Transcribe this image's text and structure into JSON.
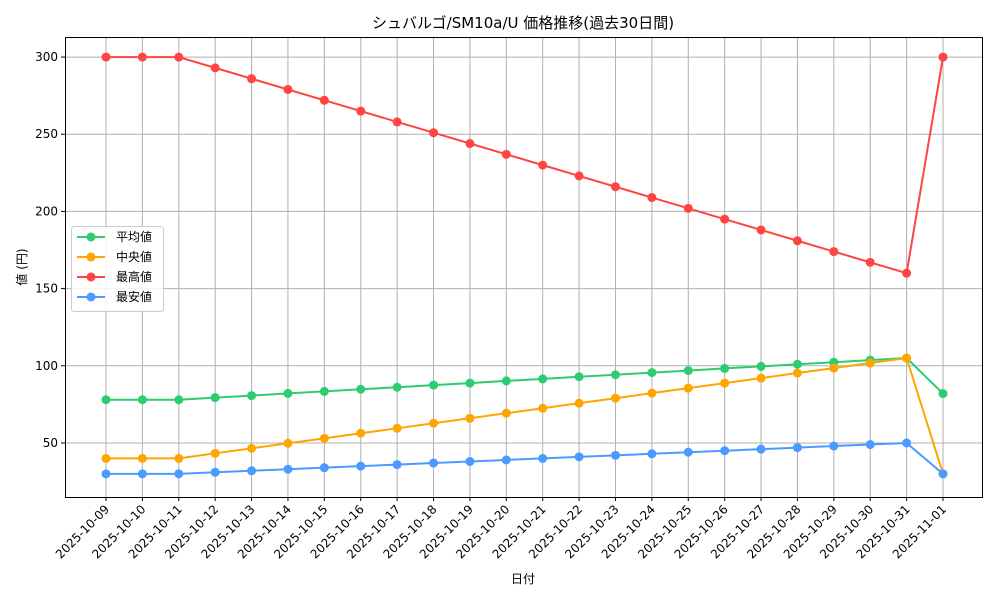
{
  "chart_data": {
    "type": "line",
    "title": "シュバルゴ/SM10a/U 価格推移(過去30日間)",
    "xlabel": "日付",
    "ylabel": "値 (円)",
    "ylim": [
      15,
      313
    ],
    "yticks": [
      50,
      100,
      150,
      200,
      250,
      300
    ],
    "grid": true,
    "legend_position": "center-left",
    "x": [
      "2025-10-09",
      "2025-10-10",
      "2025-10-11",
      "2025-10-12",
      "2025-10-13",
      "2025-10-14",
      "2025-10-15",
      "2025-10-16",
      "2025-10-17",
      "2025-10-18",
      "2025-10-19",
      "2025-10-20",
      "2025-10-21",
      "2025-10-22",
      "2025-10-23",
      "2025-10-24",
      "2025-10-25",
      "2025-10-26",
      "2025-10-27",
      "2025-10-28",
      "2025-10-29",
      "2025-10-30",
      "2025-10-31",
      "2025-11-01"
    ],
    "series": [
      {
        "name": "平均値",
        "color": "#2ecc71",
        "values": [
          78,
          78,
          78,
          79.4,
          80.7,
          82.1,
          83.4,
          84.8,
          86.1,
          87.5,
          88.8,
          90.2,
          91.5,
          92.9,
          94.2,
          95.6,
          96.9,
          98.3,
          99.6,
          101,
          102.3,
          103.7,
          105,
          82
        ]
      },
      {
        "name": "中央値",
        "color": "#ffa500",
        "values": [
          40,
          40,
          40,
          43.3,
          46.5,
          49.8,
          53,
          56.3,
          59.5,
          62.8,
          66,
          69.3,
          72.5,
          75.8,
          79,
          82.3,
          85.5,
          88.8,
          92,
          95.3,
          98.5,
          101.8,
          105,
          30
        ]
      },
      {
        "name": "最高値",
        "color": "#ff4444",
        "values": [
          300,
          300,
          300,
          293,
          286,
          279,
          272,
          265,
          258,
          251,
          244,
          237,
          230,
          223,
          216,
          209,
          202,
          195,
          188,
          181,
          174,
          167,
          160,
          300
        ]
      },
      {
        "name": "最安値",
        "color": "#4a9aff",
        "values": [
          30,
          30,
          30,
          31,
          32,
          33,
          34,
          35,
          36,
          37,
          38,
          39,
          40,
          41,
          42,
          43,
          44,
          45,
          46,
          47,
          48,
          49,
          50,
          30
        ]
      }
    ]
  }
}
